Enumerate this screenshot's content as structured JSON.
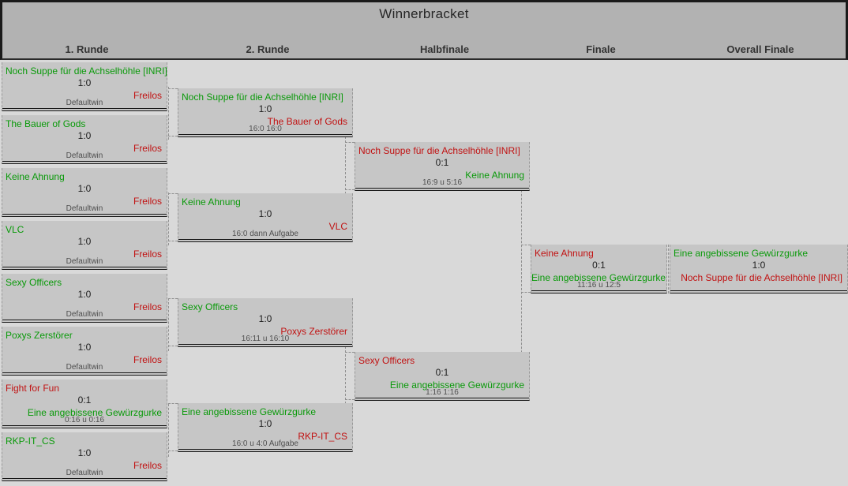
{
  "title": "Winnerbracket",
  "columns": [
    "1. Runde",
    "2. Runde",
    "Halbfinale",
    "Finale",
    "Overall Finale"
  ],
  "colors": {
    "winner_text": "#0A9A0A",
    "loser_text": "#C11212",
    "box_bg": "#C6C6C6",
    "header_bg": "#B2B2B2",
    "page_bg": "#D9D9D9"
  },
  "rounds": [
    {
      "name": "1. Runde",
      "matches": [
        {
          "top": "Noch Suppe für die Achselhöhle [INRI]",
          "top_winner": true,
          "score": "1:0",
          "bottom": "Freilos",
          "note": "Defaultwin"
        },
        {
          "top": "The Bauer of Gods",
          "top_winner": true,
          "score": "1:0",
          "bottom": "Freilos",
          "note": "Defaultwin"
        },
        {
          "top": "Keine Ahnung",
          "top_winner": true,
          "score": "1:0",
          "bottom": "Freilos",
          "note": "Defaultwin"
        },
        {
          "top": "VLC",
          "top_winner": true,
          "score": "1:0",
          "bottom": "Freilos",
          "note": "Defaultwin"
        },
        {
          "top": "Sexy Officers",
          "top_winner": true,
          "score": "1:0",
          "bottom": "Freilos",
          "note": "Defaultwin"
        },
        {
          "top": "Poxys Zerstörer",
          "top_winner": true,
          "score": "1:0",
          "bottom": "Freilos",
          "note": "Defaultwin"
        },
        {
          "top": "Fight for Fun",
          "top_winner": false,
          "score": "0:1",
          "bottom": "Eine angebissene Gewürzgurke",
          "note": "0:16 u 0:16"
        },
        {
          "top": "RKP-IT_CS",
          "top_winner": true,
          "score": "1:0",
          "bottom": "Freilos",
          "note": "Defaultwin"
        }
      ]
    },
    {
      "name": "2. Runde",
      "matches": [
        {
          "top": "Noch Suppe für die Achselhöhle [INRI]",
          "top_winner": true,
          "score": "1:0",
          "bottom": "The Bauer of Gods",
          "note": "16:0 16:0"
        },
        {
          "top": "Keine Ahnung",
          "top_winner": true,
          "score": "1:0",
          "bottom": "VLC",
          "note": "16:0 dann Aufgabe"
        },
        {
          "top": "Sexy Officers",
          "top_winner": true,
          "score": "1:0",
          "bottom": "Poxys Zerstörer",
          "note": "16:11 u 16:10"
        },
        {
          "top": "Eine angebissene Gewürzgurke",
          "top_winner": true,
          "score": "1:0",
          "bottom": "RKP-IT_CS",
          "note": "16:0 u 4:0 Aufgabe"
        }
      ]
    },
    {
      "name": "Halbfinale",
      "matches": [
        {
          "top": "Noch Suppe für die Achselhöhle [INRI]",
          "top_winner": false,
          "score": "0:1",
          "bottom": "Keine Ahnung",
          "note": "16:9 u 5:16"
        },
        {
          "top": "Sexy Officers",
          "top_winner": false,
          "score": "0:1",
          "bottom": "Eine angebissene Gewürzgurke",
          "note": "1:16 1:16"
        }
      ]
    },
    {
      "name": "Finale",
      "matches": [
        {
          "top": "Keine Ahnung",
          "top_winner": false,
          "score": "0:1",
          "bottom": "Eine angebissene Gewürzgurke",
          "note": "11:16 u 12:5"
        }
      ]
    },
    {
      "name": "Overall Finale",
      "matches": [
        {
          "top": "Eine angebissene Gewürzgurke",
          "top_winner": true,
          "score": "1:0",
          "bottom": "Noch Suppe für die Achselhöhle [INRI]",
          "note": ""
        }
      ]
    }
  ]
}
